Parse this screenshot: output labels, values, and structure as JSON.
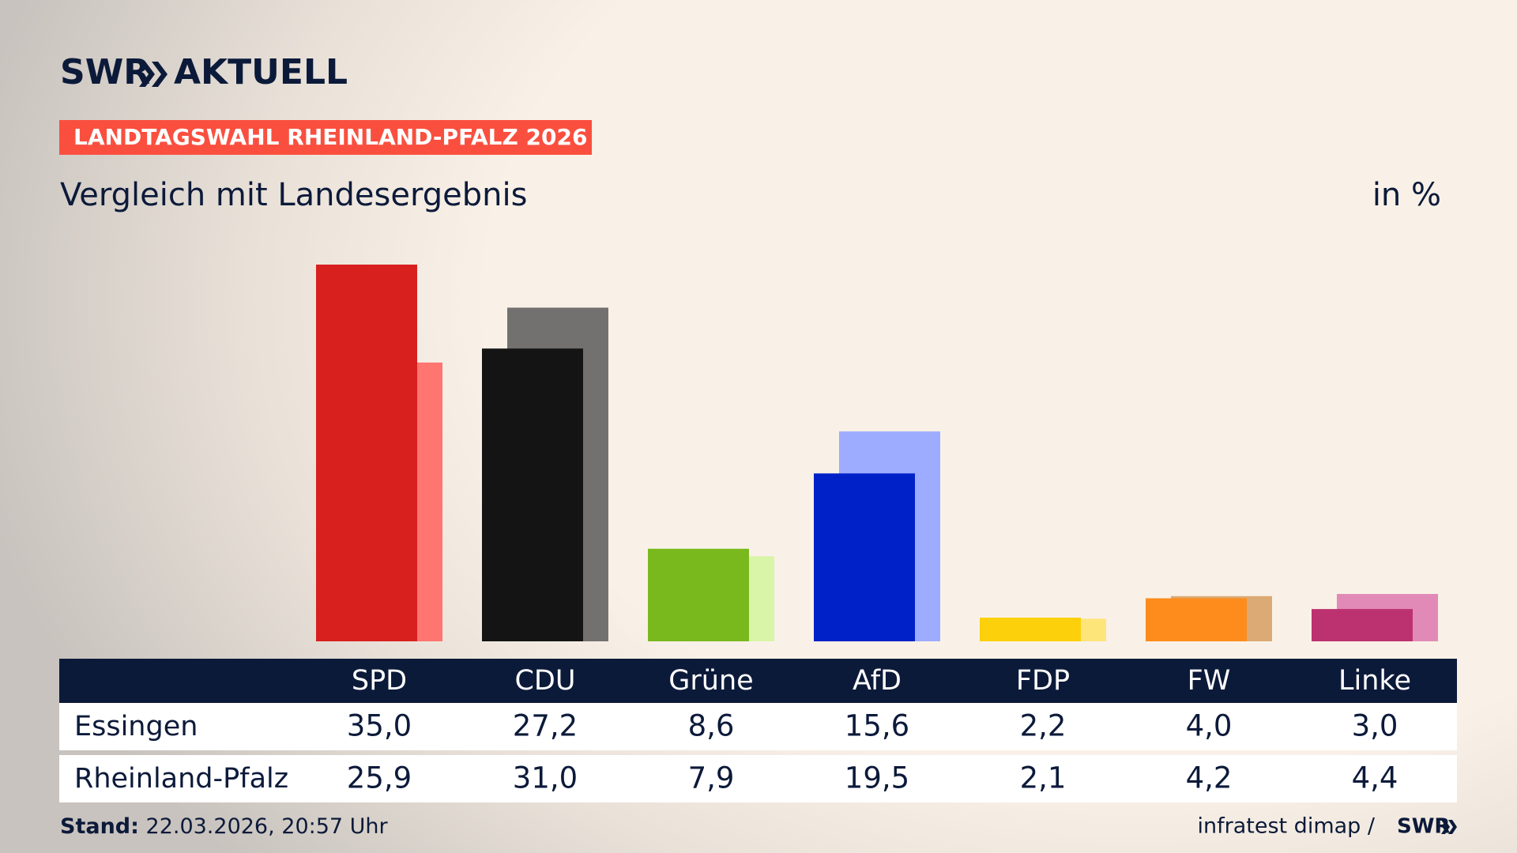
{
  "header": {
    "logo": "SWR",
    "brand": "AKTUELL",
    "banner": "LANDTAGSWAHL RHEINLAND-PFALZ 2026"
  },
  "chart_data": {
    "type": "bar",
    "subtitle": "Vergleich mit Landesergebnis",
    "unit": "in %",
    "categories": [
      "SPD",
      "CDU",
      "Grüne",
      "AfD",
      "FDP",
      "FW",
      "Linke"
    ],
    "series": [
      {
        "name": "Essingen",
        "colors": [
          "#d8201f",
          "#141414",
          "#7ab91e",
          "#0021c8",
          "#fcd00b",
          "#fd8c1c",
          "#bc3170"
        ],
        "values": [
          35.0,
          27.2,
          8.6,
          15.6,
          2.2,
          4.0,
          3.0
        ],
        "value_labels": [
          "35,0",
          "27,2",
          "8,6",
          "15,6",
          "2,2",
          "4,0",
          "3,0"
        ]
      },
      {
        "name": "Rheinland-Pfalz",
        "colors": [
          "#ff7570",
          "#737170",
          "#d8f5a8",
          "#9eacff",
          "#fde57a",
          "#dcaa74",
          "#e28ab7"
        ],
        "values": [
          25.9,
          31.0,
          7.9,
          19.5,
          2.1,
          4.2,
          4.4
        ],
        "value_labels": [
          "25,9",
          "31,0",
          "7,9",
          "19,5",
          "2,1",
          "4,2",
          "4,4"
        ]
      }
    ]
  },
  "footer": {
    "stand_label": "Stand:",
    "stand": "22.03.2026, 20:57 Uhr",
    "source": "infratest dimap /",
    "logo": "SWR"
  }
}
